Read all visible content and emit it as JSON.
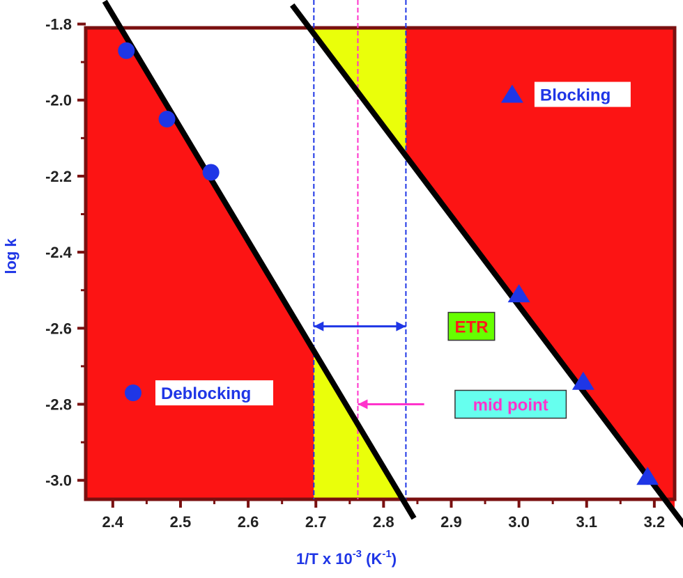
{
  "chart_data": {
    "type": "scatter",
    "title": "",
    "xlabel": "1/T x 10",
    "xlabel_sup": "-3",
    "xlabel_unit_open": " (K",
    "xlabel_unit_sup": "-1",
    "xlabel_unit_close": ")",
    "ylabel": "log k",
    "xlim": [
      2.36,
      3.23
    ],
    "ylim": [
      -3.05,
      -1.81
    ],
    "x_ticks": [
      2.4,
      2.5,
      2.6,
      2.7,
      2.8,
      2.9,
      3.0,
      3.1,
      3.2
    ],
    "x_tick_labels": [
      "2.4",
      "2.5",
      "2.6",
      "2.7",
      "2.8",
      "2.9",
      "3.0",
      "3.1",
      "3.2"
    ],
    "y_ticks": [
      -1.8,
      -2.0,
      -2.2,
      -2.4,
      -2.6,
      -2.8,
      -3.0
    ],
    "y_tick_labels": [
      "-1.8",
      "-2.0",
      "-2.2",
      "-2.4",
      "-2.6",
      "-2.8",
      "-3.0"
    ],
    "grid": false,
    "series": [
      {
        "name": "Deblocking",
        "marker": "circle",
        "color": "#1f36e6",
        "points": [
          [
            2.42,
            -1.87
          ],
          [
            2.48,
            -2.05
          ],
          [
            2.545,
            -2.19
          ]
        ],
        "legend_marker": [
          2.43,
          -2.77
        ]
      },
      {
        "name": "Blocking",
        "marker": "triangle",
        "color": "#1f36e6",
        "points": [
          [
            3.0,
            -2.51
          ],
          [
            3.095,
            -2.74
          ],
          [
            3.19,
            -2.99
          ]
        ],
        "legend_marker": [
          2.99,
          -1.985
        ]
      }
    ],
    "fit_lines": [
      {
        "series": "Deblocking",
        "x": [
          2.388,
          2.845
        ],
        "y": [
          -1.74,
          -3.1
        ]
      },
      {
        "series": "Blocking",
        "x": [
          2.665,
          3.245
        ],
        "y": [
          -1.75,
          -3.12
        ]
      }
    ],
    "vertical_lines": [
      {
        "x": 2.697,
        "color": "#1f36e6",
        "style": "dashed"
      },
      {
        "x": 2.833,
        "color": "#1f36e6",
        "style": "dashed"
      },
      {
        "x": 2.762,
        "color": "#ff33cc",
        "style": "dashed"
      }
    ],
    "annotations": [
      {
        "text": "ETR",
        "text_color": "#ff1a1a",
        "box_color": "#66ff00",
        "arrow": "double",
        "arrow_color": "#1f36e6",
        "arrow_x": [
          2.697,
          2.833
        ],
        "arrow_y": -2.595,
        "label_x": 2.91,
        "label_y": -2.595
      },
      {
        "text": "mid point",
        "text_color": "#ff33cc",
        "box_color": "#66ffee",
        "arrow": "single",
        "arrow_color": "#ff33cc",
        "arrow_x": [
          2.86,
          2.762
        ],
        "arrow_y": -2.8,
        "label_x": 2.92,
        "label_y": -2.8
      }
    ],
    "colors": {
      "red_region": "#fc1414",
      "yellow_region": "#eaff0a",
      "frame": "#7a1010",
      "line": "#000000",
      "marker": "#1f36e6"
    }
  }
}
